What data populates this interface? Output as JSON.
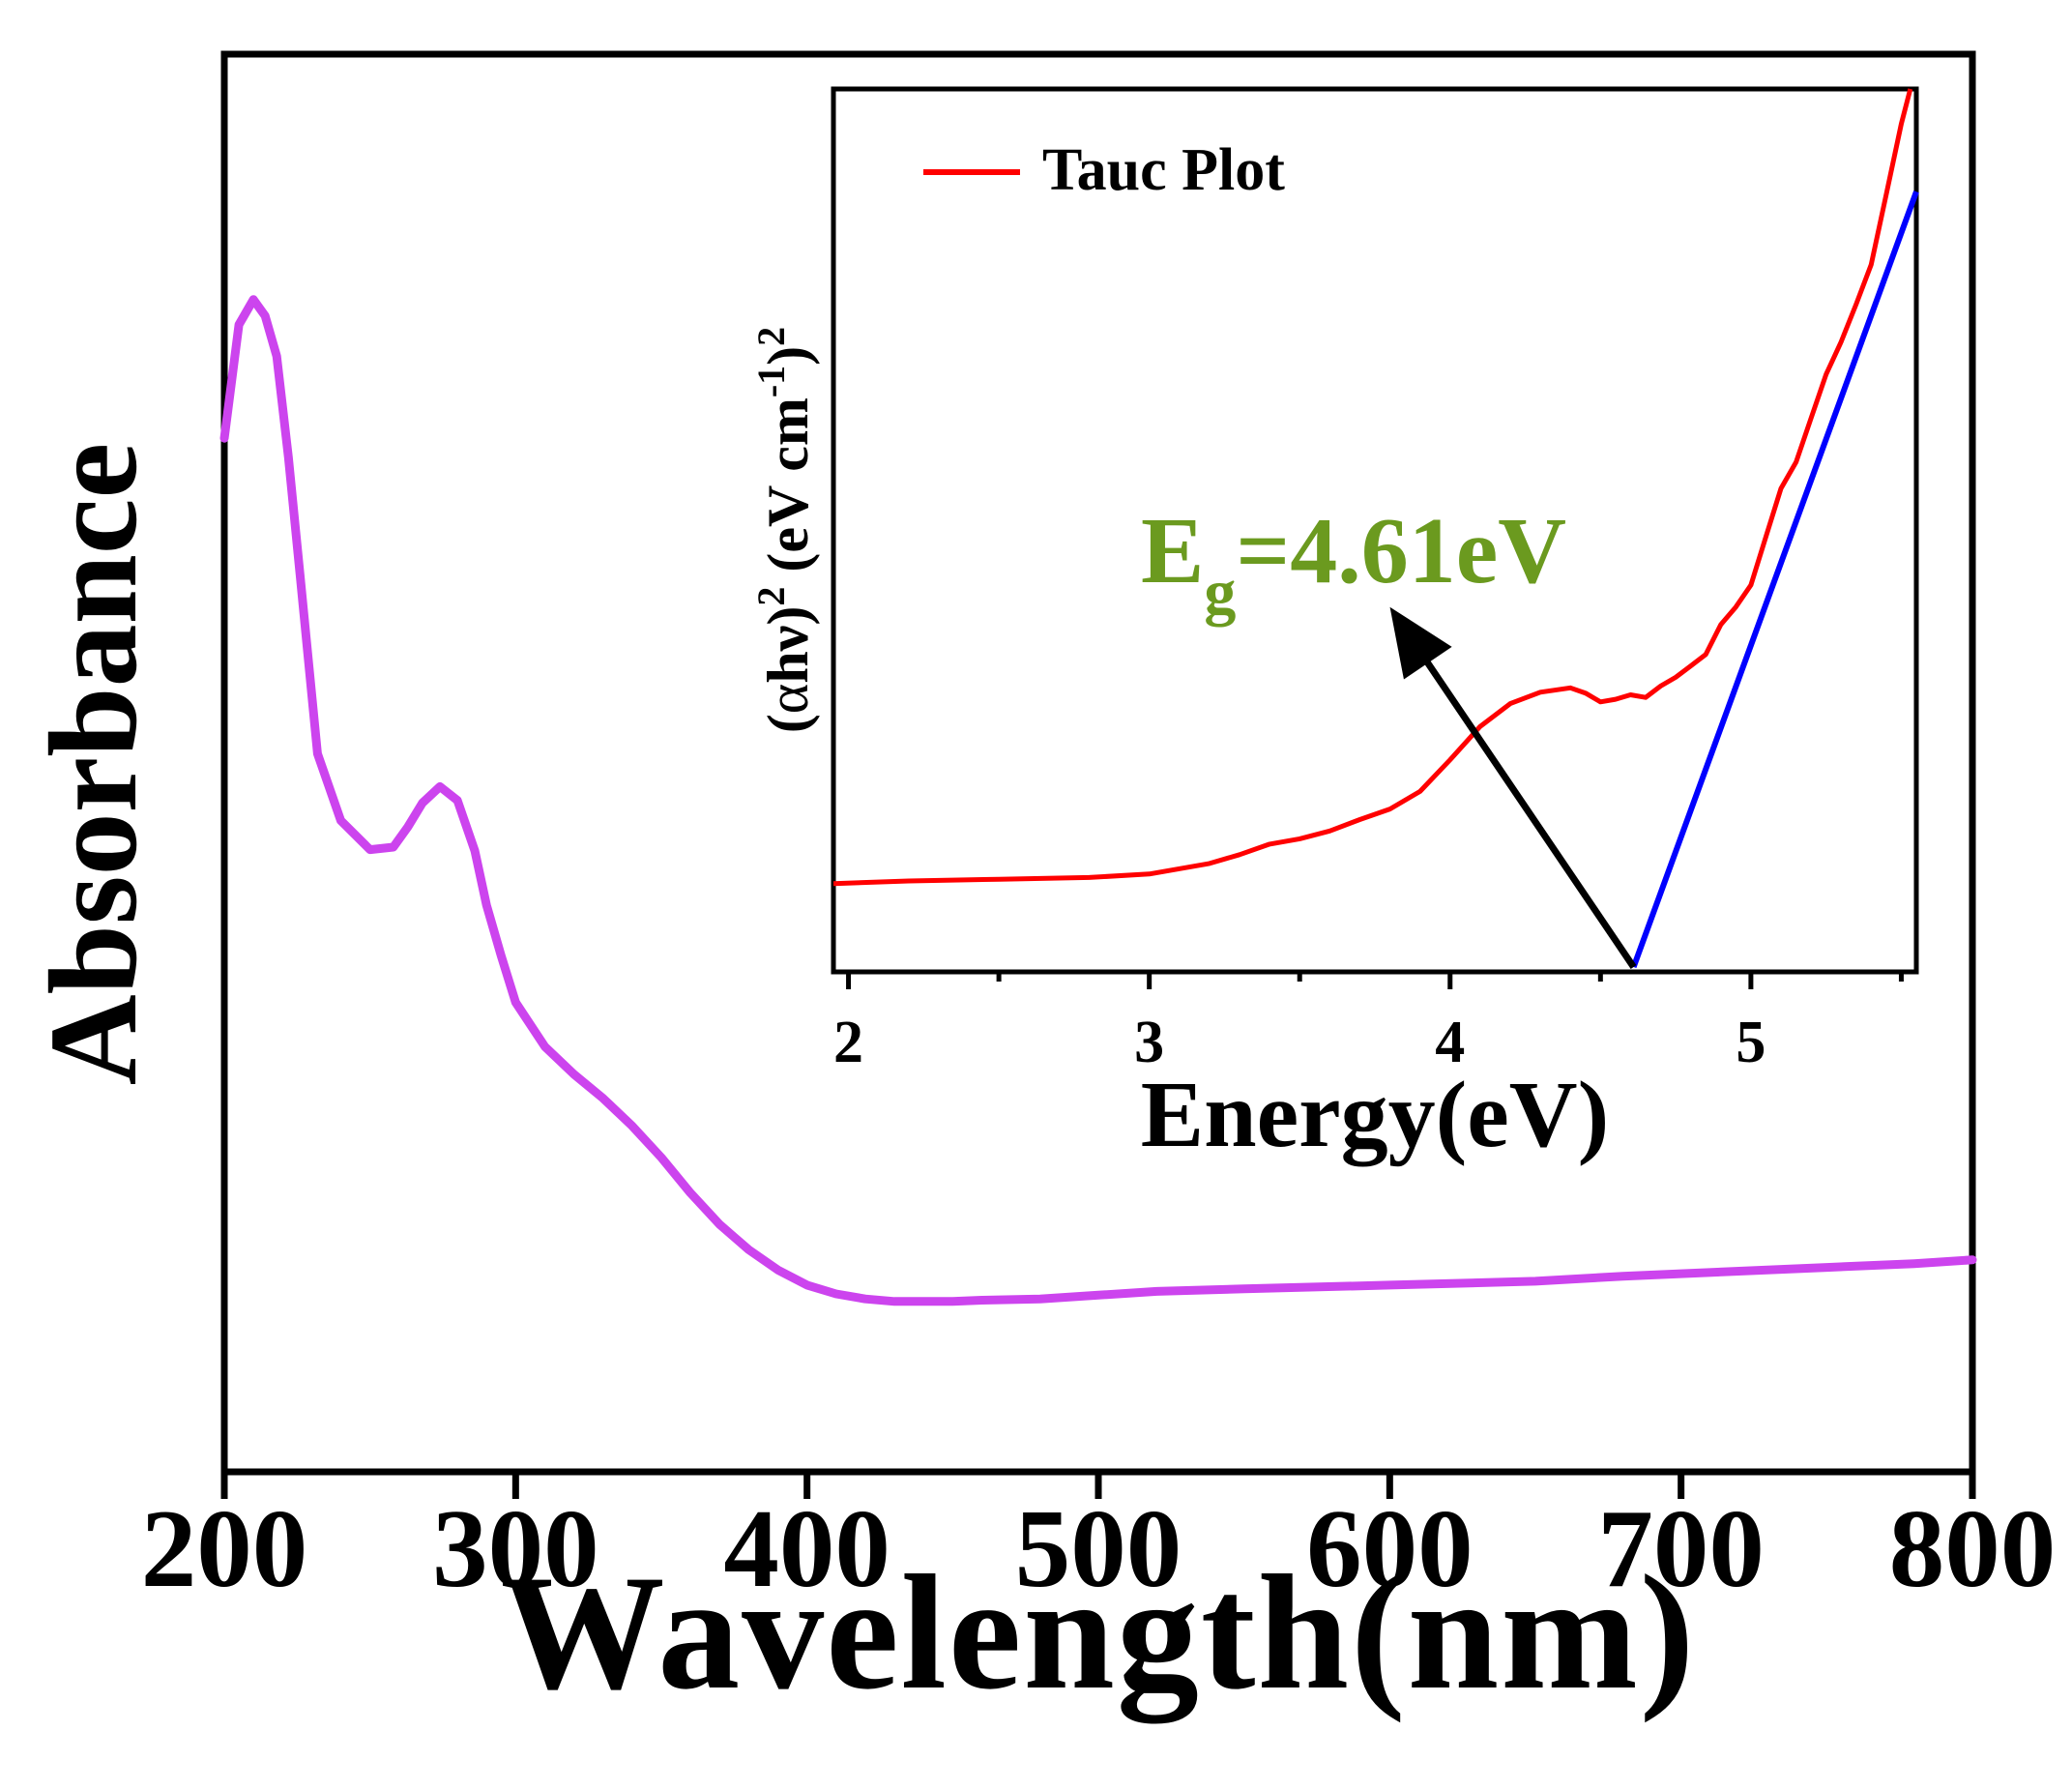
{
  "chart_data": [
    {
      "id": "main",
      "type": "line",
      "title": "",
      "xlabel": "Wavelength(nm)",
      "ylabel": "Absorbance",
      "xlim": [
        200,
        800
      ],
      "ylim": [
        0,
        1
      ],
      "x_ticks": [
        200,
        300,
        400,
        500,
        600,
        700,
        800
      ],
      "x_tick_labels": [
        "200",
        "300",
        "400",
        "500",
        "600",
        "700",
        "800"
      ],
      "y_ticks_shown": false,
      "grid": false,
      "series": [
        {
          "name": "Absorbance",
          "color": "#cc44ee",
          "x": [
            200,
            205,
            210,
            214,
            218,
            222,
            226,
            232,
            240,
            250,
            258,
            263,
            268,
            274,
            280,
            286,
            290,
            295,
            300,
            310,
            320,
            330,
            340,
            350,
            360,
            370,
            380,
            390,
            400,
            410,
            420,
            430,
            440,
            450,
            460,
            480,
            500,
            520,
            550,
            600,
            650,
            680,
            700,
            750,
            780,
            800
          ],
          "y": [
            0.76,
            0.85,
            0.87,
            0.857,
            0.825,
            0.745,
            0.652,
            0.51,
            0.457,
            0.434,
            0.436,
            0.452,
            0.471,
            0.484,
            0.473,
            0.433,
            0.39,
            0.35,
            0.313,
            0.278,
            0.256,
            0.237,
            0.215,
            0.19,
            0.162,
            0.137,
            0.117,
            0.101,
            0.089,
            0.082,
            0.078,
            0.076,
            0.076,
            0.076,
            0.077,
            0.078,
            0.081,
            0.084,
            0.086,
            0.089,
            0.092,
            0.096,
            0.098,
            0.103,
            0.106,
            0.109
          ]
        }
      ]
    },
    {
      "id": "inset",
      "type": "line",
      "title": "",
      "xlabel": "Energy(eV)",
      "ylabel_parts": {
        "open": "(",
        "alpha": "α",
        "hv": "hν)",
        "sup1": "2",
        "mid": " (eV cm",
        "sup2": "-1",
        "close": ")",
        "sup3": "2"
      },
      "xlim": [
        1.95,
        5.55
      ],
      "ylim": [
        0,
        1
      ],
      "x_ticks": [
        2,
        3,
        4,
        5
      ],
      "x_tick_labels": [
        "2",
        "3",
        "4",
        "5"
      ],
      "x_minor_ticks": [
        2.5,
        3.5,
        4.5,
        5.5
      ],
      "legend": {
        "position": "top-left",
        "entries": [
          {
            "label": "Tauc Plot",
            "color": "#ff0000"
          }
        ]
      },
      "series": [
        {
          "name": "Tauc Plot",
          "color": "#ff0000",
          "x": [
            1.95,
            2.2,
            2.5,
            2.8,
            3.0,
            3.2,
            3.3,
            3.4,
            3.5,
            3.6,
            3.7,
            3.8,
            3.9,
            4.0,
            4.1,
            4.2,
            4.3,
            4.4,
            4.45,
            4.5,
            4.55,
            4.6,
            4.65,
            4.7,
            4.75,
            4.8,
            4.85,
            4.9,
            4.95,
            5.0,
            5.05,
            5.1,
            5.15,
            5.2,
            5.25,
            5.3,
            5.35,
            5.4,
            5.45,
            5.5,
            5.53
          ],
          "y": [
            0.095,
            0.098,
            0.1,
            0.102,
            0.106,
            0.118,
            0.128,
            0.14,
            0.146,
            0.155,
            0.168,
            0.18,
            0.2,
            0.236,
            0.274,
            0.3,
            0.313,
            0.318,
            0.312,
            0.302,
            0.305,
            0.31,
            0.307,
            0.32,
            0.33,
            0.343,
            0.356,
            0.39,
            0.41,
            0.435,
            0.49,
            0.545,
            0.575,
            0.625,
            0.675,
            0.712,
            0.755,
            0.8,
            0.88,
            0.96,
            1.0
          ]
        },
        {
          "name": "Linear fit",
          "color": "#0000ff",
          "x": [
            4.61,
            5.55
          ],
          "y": [
            0.0,
            0.883
          ]
        }
      ],
      "annotation": {
        "text_main": "E",
        "text_sub": "g",
        "text_value": "=4.61eV",
        "color": "#6b9a1f",
        "arrow_from": {
          "x": 4.61,
          "y": 0.0
        },
        "arrow_to": {
          "x": 3.8,
          "y": 0.41
        }
      }
    }
  ]
}
